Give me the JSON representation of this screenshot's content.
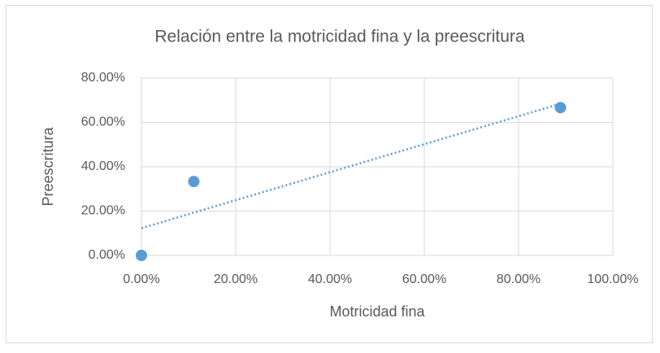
{
  "chart_data": {
    "type": "scatter",
    "title": "Relación entre la motricidad fina y la preescritura",
    "x_label": "Motricidad fina",
    "y_label": "Preescritura",
    "x": [
      0,
      11.11,
      88.89
    ],
    "values": [
      0,
      33.33,
      66.67
    ],
    "color": "#5b9bd5",
    "trendline": "linear",
    "xlim": [
      0,
      100
    ],
    "xticks": [
      {
        "value": 0,
        "label": "0.00%"
      },
      {
        "value": 20,
        "label": "20.00%"
      },
      {
        "value": 40,
        "label": "40.00%"
      },
      {
        "value": 60,
        "label": "60.00%"
      },
      {
        "value": 80,
        "label": "80.00%"
      },
      {
        "value": 100,
        "label": "100.00%"
      }
    ],
    "ylim": [
      0,
      80
    ],
    "yticks": [
      {
        "value": 0,
        "label": "0.00%"
      },
      {
        "value": 20,
        "label": "20.00%"
      },
      {
        "value": 40,
        "label": "40.00%"
      },
      {
        "value": 60,
        "label": "60.00%"
      },
      {
        "value": 80,
        "label": "80.00%"
      }
    ],
    "grid": true
  }
}
